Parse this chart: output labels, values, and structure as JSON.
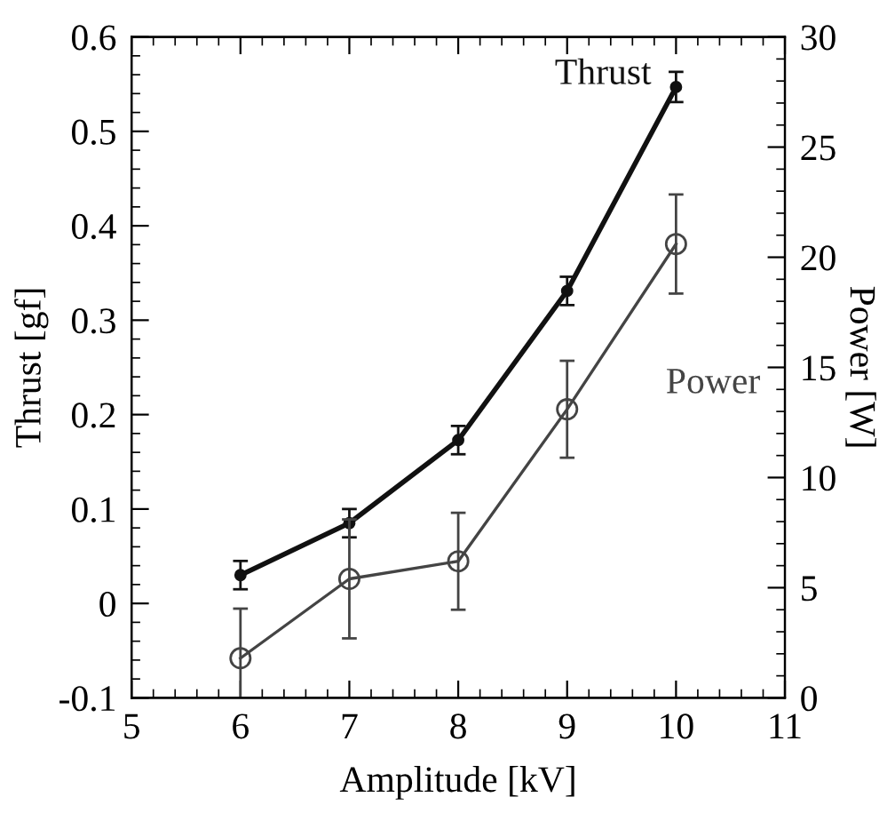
{
  "chart_data": {
    "type": "line",
    "xlabel": "Amplitude [kV]",
    "ylabel": "Thrust [gf]",
    "y2label": "Power [W]",
    "x": [
      6,
      7,
      8,
      9,
      10
    ],
    "series": [
      {
        "name": "Thrust",
        "color": "#111111",
        "marker": "circle",
        "values": [
          0.03,
          0.085,
          0.173,
          0.331,
          0.547
        ],
        "errors": [
          0.015,
          0.015,
          0.015,
          0.015,
          0.016
        ]
      },
      {
        "name": "Power",
        "color": "#444444",
        "marker": "circle",
        "axis": "y2",
        "values": [
          1.8,
          5.4,
          6.2,
          13.1,
          20.6
        ],
        "errors": [
          2.25,
          2.7,
          2.2,
          2.2,
          2.25
        ]
      }
    ],
    "xlim": [
      5,
      11
    ],
    "xticks": [
      5,
      6,
      7,
      8,
      9,
      10,
      11
    ],
    "ylim": [
      -0.1,
      0.6
    ],
    "yticks": [
      -0.1,
      0,
      0.1,
      0.2,
      0.3,
      0.4,
      0.5,
      0.6
    ],
    "y2lim": [
      0,
      30
    ],
    "y2ticks": [
      0,
      5,
      10,
      15,
      20,
      25,
      30
    ],
    "grid": false,
    "legend": false,
    "line_style": "solid"
  }
}
